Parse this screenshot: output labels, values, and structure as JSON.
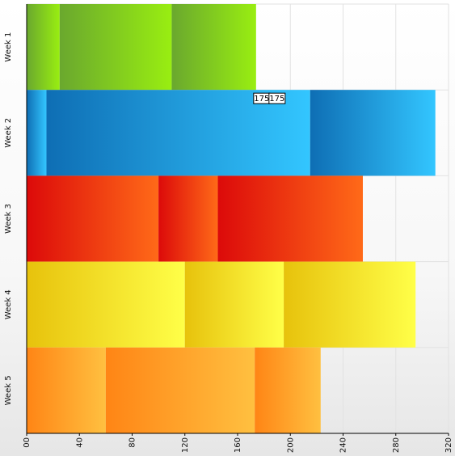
{
  "chart_data": {
    "type": "bar",
    "orientation": "horizontal",
    "stacked": true,
    "categories": [
      "Week 1",
      "Week 2",
      "Week 3",
      "Week 4",
      "Week 5"
    ],
    "series": [
      {
        "values": [
          25,
          15,
          100,
          120,
          60
        ]
      },
      {
        "values": [
          85,
          200,
          45,
          75,
          113
        ]
      },
      {
        "values": [
          64,
          95,
          110,
          100,
          50
        ]
      }
    ],
    "category_colors": [
      {
        "dark": "#6aa82e",
        "light": "#99ee11"
      },
      {
        "dark": "#0e6eb4",
        "light": "#33c6ff"
      },
      {
        "dark": "#dc0a0a",
        "light": "#ff6a18"
      },
      {
        "dark": "#e7c20c",
        "light": "#ffff48"
      },
      {
        "dark": "#ff8515",
        "light": "#ffc040"
      }
    ],
    "xlim": [
      0,
      320
    ],
    "xticks": [
      "00",
      "40",
      "80",
      "120",
      "160",
      "200",
      "240",
      "280",
      "320"
    ],
    "tooltip_labels": [
      "175",
      "175"
    ],
    "grid": true
  }
}
